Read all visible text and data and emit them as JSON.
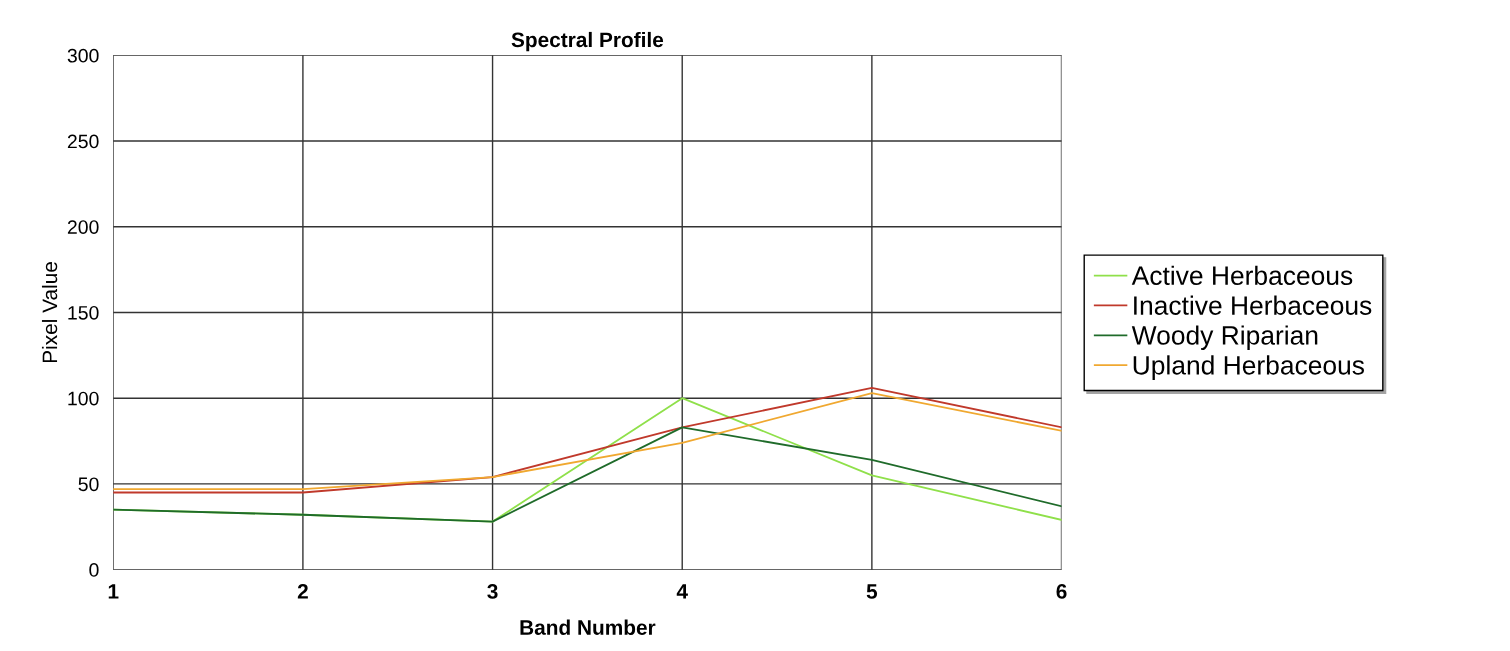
{
  "chart_data": {
    "type": "line",
    "title": "Spectral Profile",
    "xlabel": "Band Number",
    "ylabel": "Pixel Value",
    "x": [
      1,
      2,
      3,
      4,
      5,
      6
    ],
    "series": [
      {
        "name": "Active Herbaceous",
        "color": "#8fe04a",
        "values": [
          35,
          32,
          28,
          100,
          55,
          29
        ]
      },
      {
        "name": "Inactive Herbaceous",
        "color": "#c0392b",
        "values": [
          45,
          45,
          54,
          83,
          106,
          83
        ]
      },
      {
        "name": "Woody Riparian",
        "color": "#1f6b2a",
        "values": [
          35,
          32,
          28,
          83,
          64,
          37
        ]
      },
      {
        "name": "Upland Herbaceous",
        "color": "#f0a830",
        "values": [
          47,
          47,
          54,
          74,
          103,
          81
        ]
      }
    ],
    "xlim": [
      1,
      6
    ],
    "xticks": [
      1,
      2,
      3,
      4,
      5,
      6
    ],
    "ylim": [
      0,
      300
    ],
    "yticks": [
      0,
      50,
      100,
      150,
      200,
      250,
      300
    ],
    "grid": true,
    "legend": "right",
    "marker": "none",
    "line_style": "solid"
  }
}
